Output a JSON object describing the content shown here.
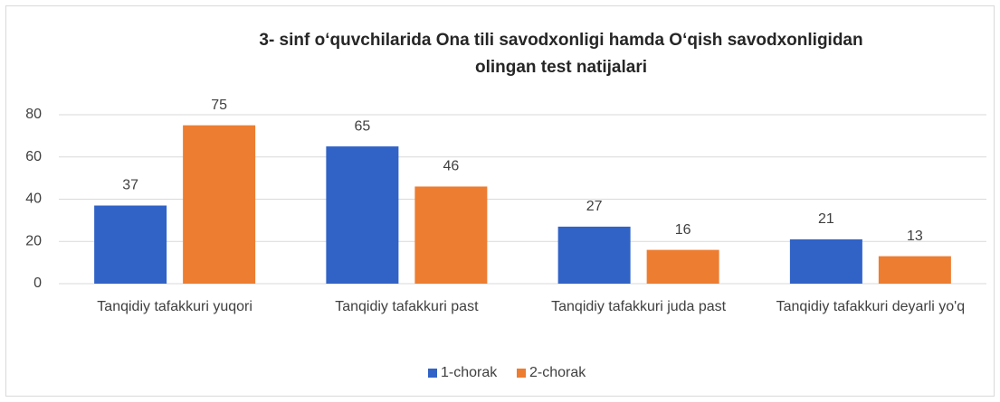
{
  "chart_data": {
    "type": "bar",
    "title": "3- sinf o‘quvchilarida Ona tili savodxonligi hamda O‘qish savodxonligidan olingan test natijalari",
    "categories": [
      "Tanqidiy tafakkuri yuqori",
      "Tanqidiy tafakkuri past",
      "Tanqidiy tafakkuri juda past",
      "Tanqidiy tafakkuri deyarli yo'q"
    ],
    "series": [
      {
        "name": "1-chorak",
        "color": "#3163c7",
        "values": [
          37,
          65,
          27,
          21
        ]
      },
      {
        "name": "2-chorak",
        "color": "#ed7d31",
        "values": [
          75,
          46,
          16,
          13
        ]
      }
    ],
    "ylim": [
      0,
      80
    ],
    "yticks": [
      0,
      20,
      40,
      60,
      80
    ],
    "grid": true,
    "legend": "bottom"
  }
}
